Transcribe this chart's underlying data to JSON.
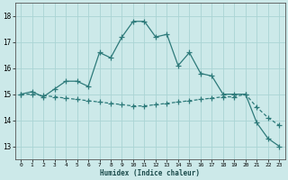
{
  "xlabel": "Humidex (Indice chaleur)",
  "background_color": "#cce9e9",
  "grid_color": "#aad4d4",
  "line_color": "#2d7a7a",
  "xlim": [
    -0.5,
    23.5
  ],
  "ylim": [
    12.5,
    18.5
  ],
  "yticks": [
    13,
    14,
    15,
    16,
    17,
    18
  ],
  "xticks": [
    0,
    1,
    2,
    3,
    4,
    5,
    6,
    7,
    8,
    9,
    10,
    11,
    12,
    13,
    14,
    15,
    16,
    17,
    18,
    19,
    20,
    21,
    22,
    23
  ],
  "series1_x": [
    0,
    1,
    2,
    3,
    4,
    5,
    6,
    7,
    8,
    9,
    10,
    11,
    12,
    13,
    14,
    15,
    16,
    17,
    18,
    19,
    20,
    21,
    22,
    23
  ],
  "series1_y": [
    15.0,
    15.1,
    14.9,
    15.2,
    15.5,
    15.5,
    15.3,
    16.6,
    16.4,
    17.2,
    17.8,
    17.8,
    17.2,
    17.3,
    16.1,
    16.6,
    15.8,
    15.7,
    15.0,
    15.0,
    15.0,
    13.9,
    13.3,
    13.0
  ],
  "series2_x": [
    0,
    1,
    2,
    3,
    4,
    5,
    6,
    7,
    8,
    9,
    10,
    11,
    12,
    13,
    14,
    15,
    16,
    17,
    18,
    19,
    20,
    21,
    22,
    23
  ],
  "series2_y": [
    15.0,
    15.0,
    14.95,
    14.9,
    14.85,
    14.8,
    14.75,
    14.7,
    14.65,
    14.6,
    14.55,
    14.55,
    14.6,
    14.65,
    14.7,
    14.75,
    14.8,
    14.85,
    14.9,
    14.9,
    15.0,
    14.5,
    14.1,
    13.8
  ]
}
